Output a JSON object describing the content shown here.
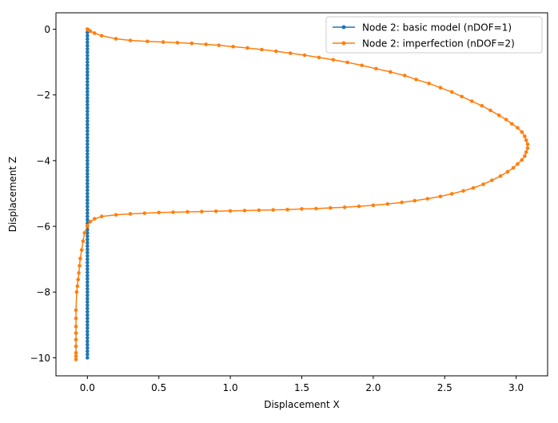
{
  "chart_data": {
    "type": "line",
    "title": "",
    "xlabel": "Displacement X",
    "ylabel": "Displacement Z",
    "xlim": [
      -0.22,
      3.22
    ],
    "ylim": [
      -10.55,
      0.5
    ],
    "x_ticks": [
      0.0,
      0.5,
      1.0,
      1.5,
      2.0,
      2.5,
      3.0
    ],
    "x_tick_labels": [
      "0.0",
      "0.5",
      "1.0",
      "1.5",
      "2.0",
      "2.5",
      "3.0"
    ],
    "y_ticks": [
      0,
      -2,
      -4,
      -6,
      -8,
      -10
    ],
    "y_tick_labels": [
      "0",
      "−2",
      "−4",
      "−6",
      "−8",
      "−10"
    ],
    "grid": false,
    "legend_position": "top-right",
    "series": [
      {
        "name": "Node 2: basic model (nDOF=1)",
        "color": "#1f77b4",
        "marker": "circle",
        "x": [
          0,
          0,
          0,
          0,
          0,
          0,
          0,
          0,
          0,
          0,
          0,
          0,
          0,
          0,
          0,
          0,
          0,
          0,
          0,
          0,
          0,
          0,
          0,
          0,
          0,
          0,
          0,
          0,
          0,
          0,
          0,
          0,
          0,
          0,
          0,
          0,
          0,
          0,
          0,
          0,
          0,
          0,
          0,
          0,
          0,
          0,
          0,
          0,
          0,
          0,
          0,
          0,
          0,
          0,
          0,
          0,
          0,
          0,
          0,
          0,
          0,
          0,
          0,
          0,
          0,
          0,
          0,
          0,
          0,
          0,
          0,
          0,
          0,
          0,
          0,
          0,
          0,
          0,
          0,
          0,
          0,
          0,
          0,
          0,
          0,
          0,
          0,
          0,
          0,
          0,
          0,
          0,
          0,
          0,
          0,
          0,
          0,
          0,
          0,
          0,
          0
        ],
        "y": [
          0,
          -0.1,
          -0.2,
          -0.3,
          -0.4,
          -0.5,
          -0.6,
          -0.7,
          -0.8,
          -0.9,
          -1.0,
          -1.1,
          -1.2,
          -1.3,
          -1.4,
          -1.5,
          -1.6,
          -1.7,
          -1.8,
          -1.9,
          -2.0,
          -2.1,
          -2.2,
          -2.3,
          -2.4,
          -2.5,
          -2.6,
          -2.7,
          -2.8,
          -2.9,
          -3.0,
          -3.1,
          -3.2,
          -3.3,
          -3.4,
          -3.5,
          -3.6,
          -3.7,
          -3.8,
          -3.9,
          -4.0,
          -4.1,
          -4.2,
          -4.3,
          -4.4,
          -4.5,
          -4.6,
          -4.7,
          -4.8,
          -4.9,
          -5.0,
          -5.1,
          -5.2,
          -5.3,
          -5.4,
          -5.5,
          -5.6,
          -5.7,
          -5.8,
          -5.9,
          -6.0,
          -6.1,
          -6.2,
          -6.3,
          -6.4,
          -6.5,
          -6.6,
          -6.7,
          -6.8,
          -6.9,
          -7.0,
          -7.1,
          -7.2,
          -7.3,
          -7.4,
          -7.5,
          -7.6,
          -7.7,
          -7.8,
          -7.9,
          -8.0,
          -8.1,
          -8.2,
          -8.3,
          -8.4,
          -8.5,
          -8.6,
          -8.7,
          -8.8,
          -8.9,
          -9.0,
          -9.1,
          -9.2,
          -9.3,
          -9.4,
          -9.5,
          -9.6,
          -9.7,
          -9.8,
          -9.9,
          -10.0
        ]
      },
      {
        "name": "Node 2: imperfection (nDOF=2)",
        "color": "#ff7f0e",
        "marker": "circle",
        "x": [
          0.0,
          0.01,
          0.02,
          0.05,
          0.1,
          0.2,
          0.3,
          0.42,
          0.53,
          0.63,
          0.73,
          0.83,
          0.92,
          1.02,
          1.12,
          1.22,
          1.32,
          1.42,
          1.52,
          1.62,
          1.72,
          1.82,
          1.92,
          2.02,
          2.12,
          2.22,
          2.3,
          2.39,
          2.47,
          2.55,
          2.62,
          2.69,
          2.76,
          2.82,
          2.88,
          2.93,
          2.97,
          3.01,
          3.04,
          3.06,
          3.07,
          3.08,
          3.08,
          3.07,
          3.06,
          3.04,
          3.01,
          2.98,
          2.94,
          2.89,
          2.83,
          2.77,
          2.7,
          2.63,
          2.55,
          2.47,
          2.38,
          2.29,
          2.2,
          2.1,
          2.0,
          1.9,
          1.8,
          1.7,
          1.6,
          1.5,
          1.4,
          1.3,
          1.2,
          1.1,
          1.0,
          0.9,
          0.8,
          0.7,
          0.6,
          0.5,
          0.4,
          0.3,
          0.2,
          0.1,
          0.05,
          0.02,
          0.0,
          -0.02,
          -0.03,
          -0.04,
          -0.05,
          -0.055,
          -0.06,
          -0.065,
          -0.07,
          -0.075,
          -0.08,
          -0.08,
          -0.08,
          -0.08,
          -0.08,
          -0.08,
          -0.08,
          -0.08,
          -0.08
        ],
        "y": [
          0.0,
          -0.03,
          -0.06,
          -0.12,
          -0.2,
          -0.29,
          -0.34,
          -0.37,
          -0.39,
          -0.41,
          -0.43,
          -0.46,
          -0.49,
          -0.53,
          -0.57,
          -0.62,
          -0.67,
          -0.73,
          -0.79,
          -0.86,
          -0.93,
          -1.01,
          -1.1,
          -1.2,
          -1.3,
          -1.41,
          -1.53,
          -1.65,
          -1.78,
          -1.91,
          -2.05,
          -2.19,
          -2.33,
          -2.47,
          -2.62,
          -2.75,
          -2.88,
          -3.0,
          -3.13,
          -3.26,
          -3.38,
          -3.5,
          -3.62,
          -3.74,
          -3.86,
          -3.98,
          -4.1,
          -4.22,
          -4.34,
          -4.47,
          -4.6,
          -4.72,
          -4.83,
          -4.92,
          -5.01,
          -5.09,
          -5.16,
          -5.22,
          -5.27,
          -5.32,
          -5.36,
          -5.39,
          -5.42,
          -5.44,
          -5.46,
          -5.47,
          -5.49,
          -5.5,
          -5.51,
          -5.52,
          -5.53,
          -5.54,
          -5.55,
          -5.56,
          -5.57,
          -5.58,
          -5.6,
          -5.62,
          -5.65,
          -5.7,
          -5.77,
          -5.86,
          -5.98,
          -6.2,
          -6.45,
          -6.72,
          -6.98,
          -7.2,
          -7.42,
          -7.62,
          -7.82,
          -8.0,
          -8.55,
          -8.8,
          -9.05,
          -9.25,
          -9.45,
          -9.65,
          -9.85,
          -9.95,
          -10.05
        ]
      }
    ]
  }
}
